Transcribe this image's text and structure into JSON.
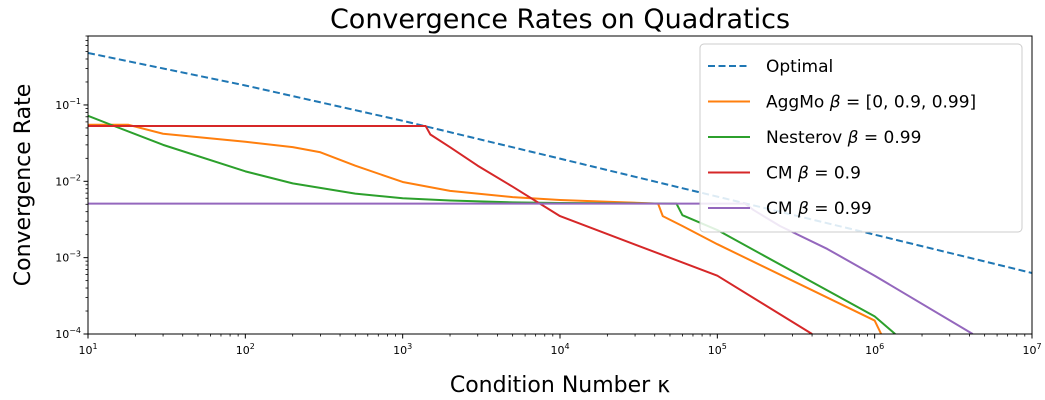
{
  "chart_data": {
    "type": "line",
    "title": "Convergence Rates on Quadratics",
    "xlabel": "Condition Number κ",
    "ylabel": "Convergence Rate",
    "xscale": "log",
    "yscale": "log",
    "xlim": [
      10,
      10000000
    ],
    "ylim": [
      0.0001,
      0.8
    ],
    "x_ticks": [
      {
        "base": "10",
        "exp": "1",
        "value": 10
      },
      {
        "base": "10",
        "exp": "2",
        "value": 100
      },
      {
        "base": "10",
        "exp": "3",
        "value": 1000
      },
      {
        "base": "10",
        "exp": "4",
        "value": 10000
      },
      {
        "base": "10",
        "exp": "5",
        "value": 100000
      },
      {
        "base": "10",
        "exp": "6",
        "value": 1000000
      },
      {
        "base": "10",
        "exp": "7",
        "value": 10000000
      }
    ],
    "y_ticks": [
      {
        "base": "10",
        "exp": "−4",
        "value": 0.0001
      },
      {
        "base": "10",
        "exp": "−3",
        "value": 0.001
      },
      {
        "base": "10",
        "exp": "−2",
        "value": 0.01
      },
      {
        "base": "10",
        "exp": "−1",
        "value": 0.1
      }
    ],
    "grid": false,
    "legend_position": "top-right",
    "series": [
      {
        "name": "Optimal",
        "color": "#1f77b4",
        "dash": "dashed",
        "points": [
          [
            10,
            0.48
          ],
          [
            100,
            0.18
          ],
          [
            1000,
            0.062
          ],
          [
            10000,
            0.0198
          ],
          [
            100000,
            0.0063
          ],
          [
            1000000,
            0.002
          ],
          [
            10000000,
            0.00063
          ]
        ]
      },
      {
        "name": "AggMo β = [0, 0.9, 0.99]",
        "color": "#ff7f0e",
        "dash": "solid",
        "points": [
          [
            10,
            0.055
          ],
          [
            18,
            0.055
          ],
          [
            30,
            0.042
          ],
          [
            100,
            0.033
          ],
          [
            200,
            0.028
          ],
          [
            300,
            0.024
          ],
          [
            500,
            0.016
          ],
          [
            1000,
            0.0098
          ],
          [
            2000,
            0.0075
          ],
          [
            5000,
            0.0062
          ],
          [
            10000,
            0.0057
          ],
          [
            20000,
            0.0054
          ],
          [
            42000,
            0.0051
          ],
          [
            45000,
            0.0035
          ],
          [
            60000,
            0.0026
          ],
          [
            100000,
            0.0015
          ],
          [
            1000000,
            0.00015
          ],
          [
            1100000,
            0.0001
          ]
        ]
      },
      {
        "name": "Nesterov β = 0.99",
        "color": "#2ca02c",
        "dash": "solid",
        "points": [
          [
            10,
            0.072
          ],
          [
            15,
            0.052
          ],
          [
            30,
            0.03
          ],
          [
            100,
            0.0135
          ],
          [
            200,
            0.0094
          ],
          [
            500,
            0.0069
          ],
          [
            1000,
            0.006
          ],
          [
            2000,
            0.0056
          ],
          [
            5000,
            0.0053
          ],
          [
            10000,
            0.0052
          ],
          [
            55000,
            0.0051
          ],
          [
            60000,
            0.0036
          ],
          [
            100000,
            0.0023
          ],
          [
            1000000,
            0.00017
          ],
          [
            1350000,
            0.0001
          ]
        ]
      },
      {
        "name": "CM β = 0.9",
        "color": "#d62728",
        "dash": "solid",
        "points": [
          [
            10,
            0.053
          ],
          [
            1400,
            0.053
          ],
          [
            1500,
            0.041
          ],
          [
            2000,
            0.028
          ],
          [
            3000,
            0.016
          ],
          [
            5000,
            0.0085
          ],
          [
            10000,
            0.0035
          ],
          [
            100000,
            0.00058
          ],
          [
            400000,
            0.0001
          ]
        ]
      },
      {
        "name": "CM β = 0.99",
        "color": "#9467bd",
        "dash": "solid",
        "points": [
          [
            10,
            0.0051
          ],
          [
            150000,
            0.0051
          ],
          [
            170000,
            0.0042
          ],
          [
            250000,
            0.0026
          ],
          [
            500000,
            0.0013
          ],
          [
            1000000,
            0.00058
          ],
          [
            4200000,
            0.0001
          ]
        ]
      }
    ]
  }
}
